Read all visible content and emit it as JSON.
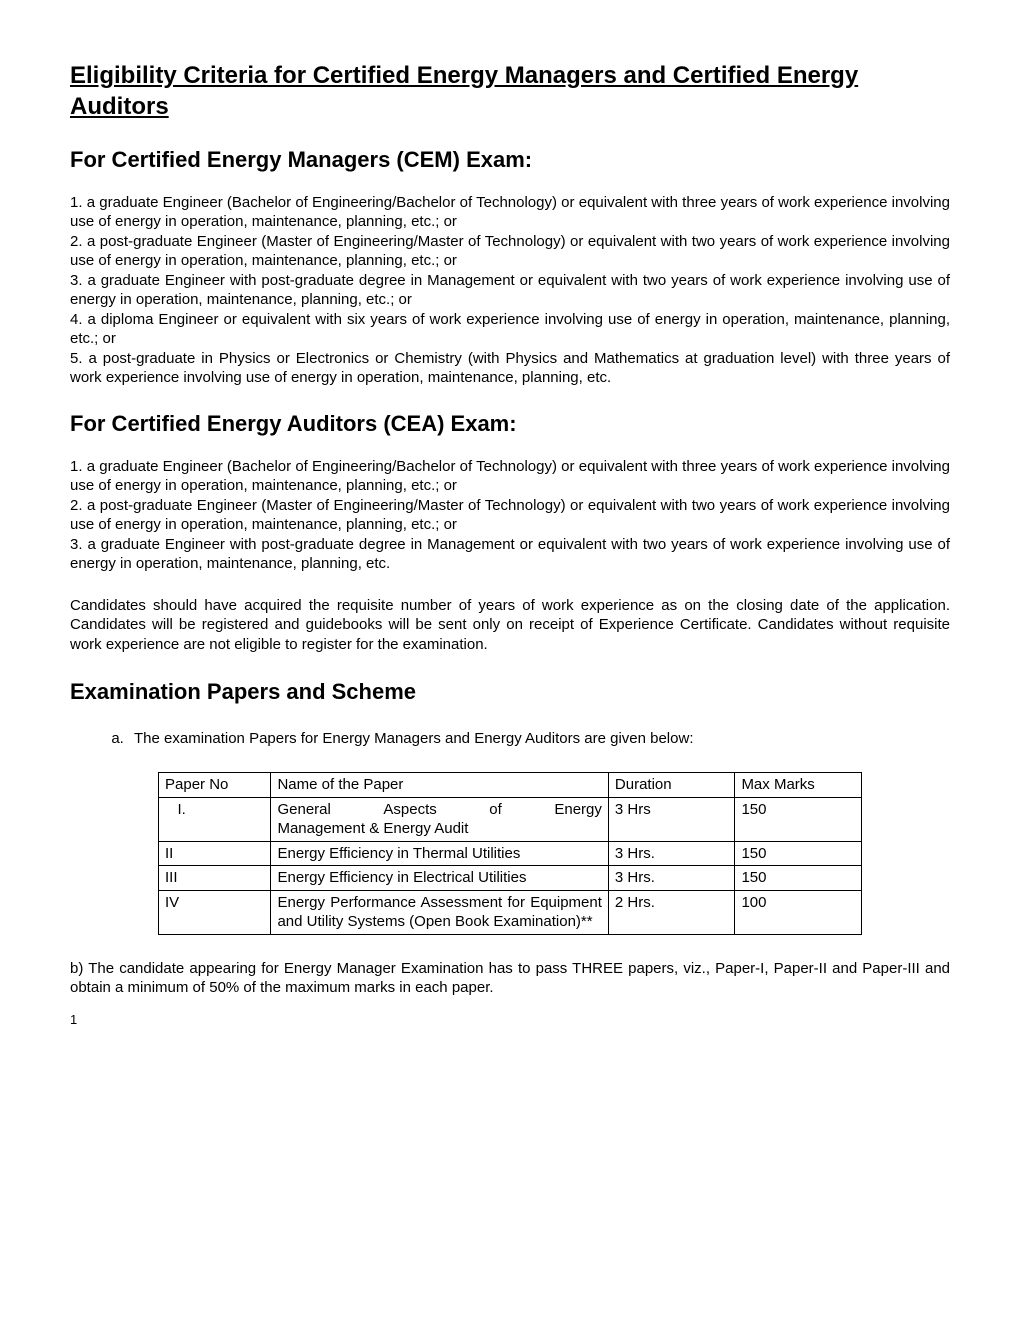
{
  "title": "Eligibility Criteria for Certified Energy Managers and Certified Energy Auditors",
  "cem": {
    "heading": "For Certified Energy Managers (CEM) Exam:",
    "items": [
      "1. a graduate Engineer (Bachelor of Engineering/Bachelor of Technology) or equivalent with three years of work experience involving use of energy in operation, maintenance, planning, etc.; or",
      "2. a post-graduate Engineer (Master of Engineering/Master of Technology) or equivalent with two years of work experience involving use of energy in operation, maintenance, planning, etc.; or",
      "3. a graduate Engineer with post-graduate degree in Management or equivalent with two years of work experience involving use of energy in operation, maintenance, planning, etc.; or",
      "4. a diploma Engineer or equivalent with six years of work experience involving use of energy in operation, maintenance, planning, etc.; or",
      "5. a post-graduate in Physics or Electronics or Chemistry (with Physics and Mathematics at graduation level) with three years of work experience involving use of energy in operation, maintenance, planning, etc."
    ]
  },
  "cea": {
    "heading": "For Certified Energy Auditors (CEA) Exam:",
    "items": [
      "1. a graduate Engineer (Bachelor of Engineering/Bachelor of Technology) or equivalent with three years of work experience involving use of energy in operation, maintenance, planning, etc.; or",
      "2. a post-graduate Engineer (Master of Engineering/Master of Technology) or equivalent with two years of work experience involving use of energy in operation, maintenance, planning, etc.; or",
      "3. a graduate Engineer with post-graduate degree in Management or equivalent with two years of work experience involving use of energy in operation, maintenance, planning, etc."
    ]
  },
  "note": "Candidates should have acquired the requisite number of years of work experience as on the closing date of the application. Candidates will be registered and guidebooks will be sent only on receipt of Experience Certificate.  Candidates without requisite work experience are not eligible to register for the examination.",
  "scheme": {
    "heading": "Examination Papers and Scheme",
    "intro": "The examination Papers for Energy Managers and Energy Auditors are given below:",
    "table": {
      "headers": [
        "Paper No",
        "Name of the Paper",
        "Duration",
        "Max Marks"
      ],
      "rows": [
        {
          "no": "   I.",
          "name": "General Aspects of Energy Management & Energy Audit",
          "name_justify": true,
          "dur": "3 Hrs",
          "marks": "150"
        },
        {
          "no": "II",
          "name": "Energy Efficiency in Thermal Utilities",
          "dur": "3 Hrs.",
          "marks": "150"
        },
        {
          "no": "III",
          "name": "Energy Efficiency in Electrical Utilities",
          "dur": "3 Hrs.",
          "marks": "150"
        },
        {
          "no": "IV",
          "name": "Energy Performance Assessment for Equipment and Utility Systems (Open Book Examination)**",
          "name_justify": true,
          "dur": "2 Hrs.",
          "marks": "100"
        }
      ]
    },
    "para_b": "b) The candidate appearing for Energy Manager Examination has to pass THREE papers, viz., Paper-I, Paper-II and Paper-III and obtain a minimum of 50% of the maximum marks in each paper."
  },
  "page_number": "1"
}
